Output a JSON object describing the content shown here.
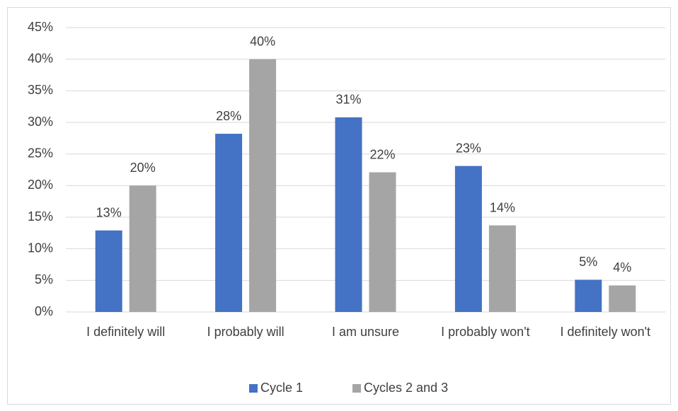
{
  "chart_data": {
    "type": "bar",
    "categories": [
      "I definitely will",
      "I probably will",
      "I am unsure",
      "I probably won't",
      "I definitely won't"
    ],
    "series": [
      {
        "name": "Cycle 1",
        "color": "#4472c4",
        "values": [
          12.9,
          28.2,
          30.8,
          23.1,
          5.1
        ],
        "value_labels": [
          "13%",
          "28%",
          "31%",
          "23%",
          "5%"
        ]
      },
      {
        "name": "Cycles 2 and 3",
        "color": "#a5a5a5",
        "values": [
          20.0,
          40.0,
          22.1,
          13.7,
          4.2
        ],
        "value_labels": [
          "20%",
          "40%",
          "22%",
          "14%",
          "4%"
        ]
      }
    ],
    "ylim": [
      0,
      45
    ],
    "yticks": [
      {
        "value": 0,
        "label": "0%"
      },
      {
        "value": 5,
        "label": "5%"
      },
      {
        "value": 10,
        "label": "10%"
      },
      {
        "value": 15,
        "label": "15%"
      },
      {
        "value": 20,
        "label": "20%"
      },
      {
        "value": 25,
        "label": "25%"
      },
      {
        "value": 30,
        "label": "30%"
      },
      {
        "value": 35,
        "label": "35%"
      },
      {
        "value": 40,
        "label": "40%"
      },
      {
        "value": 45,
        "label": "45%"
      }
    ],
    "grid": true,
    "legend": "bottom"
  }
}
